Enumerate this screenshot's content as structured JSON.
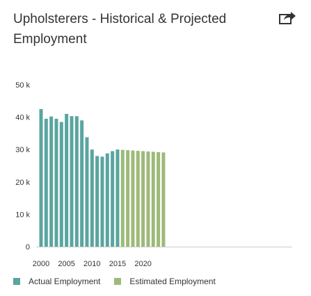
{
  "title": "Upholsterers - Historical & Projected Employment",
  "share_icon": "share-arrow-icon",
  "colors": {
    "actual": "#5aa5a0",
    "estimated": "#9dba79"
  },
  "chart_data": {
    "type": "bar",
    "title": "Upholsterers - Historical & Projected Employment",
    "xlabel": "",
    "ylabel": "",
    "ylim": [
      0,
      50000
    ],
    "yticks": [
      0,
      10000,
      20000,
      30000,
      40000,
      50000
    ],
    "ytick_labels": [
      "0",
      "10 k",
      "20 k",
      "30 k",
      "40 k",
      "50 k"
    ],
    "xticks": [
      2000,
      2005,
      2010,
      2015,
      2020
    ],
    "xtick_labels": [
      "2000",
      "2005",
      "2010",
      "2015",
      "2020"
    ],
    "grid": false,
    "legend": "bottom-left",
    "series": [
      {
        "name": "Actual Employment",
        "color": "#5aa5a0",
        "x": [
          2000,
          2001,
          2002,
          2003,
          2004,
          2005,
          2006,
          2007,
          2008,
          2009,
          2010,
          2011,
          2012,
          2013,
          2014,
          2015
        ],
        "values": [
          42500,
          39500,
          40200,
          39500,
          38500,
          41000,
          40300,
          40300,
          39000,
          33800,
          30000,
          28000,
          27800,
          28800,
          29500,
          30000
        ]
      },
      {
        "name": "Estimated Employment",
        "color": "#9dba79",
        "x": [
          2016,
          2017,
          2018,
          2019,
          2020,
          2021,
          2022,
          2023,
          2024
        ],
        "values": [
          29900,
          29800,
          29700,
          29600,
          29500,
          29400,
          29300,
          29200,
          29100
        ]
      }
    ]
  }
}
